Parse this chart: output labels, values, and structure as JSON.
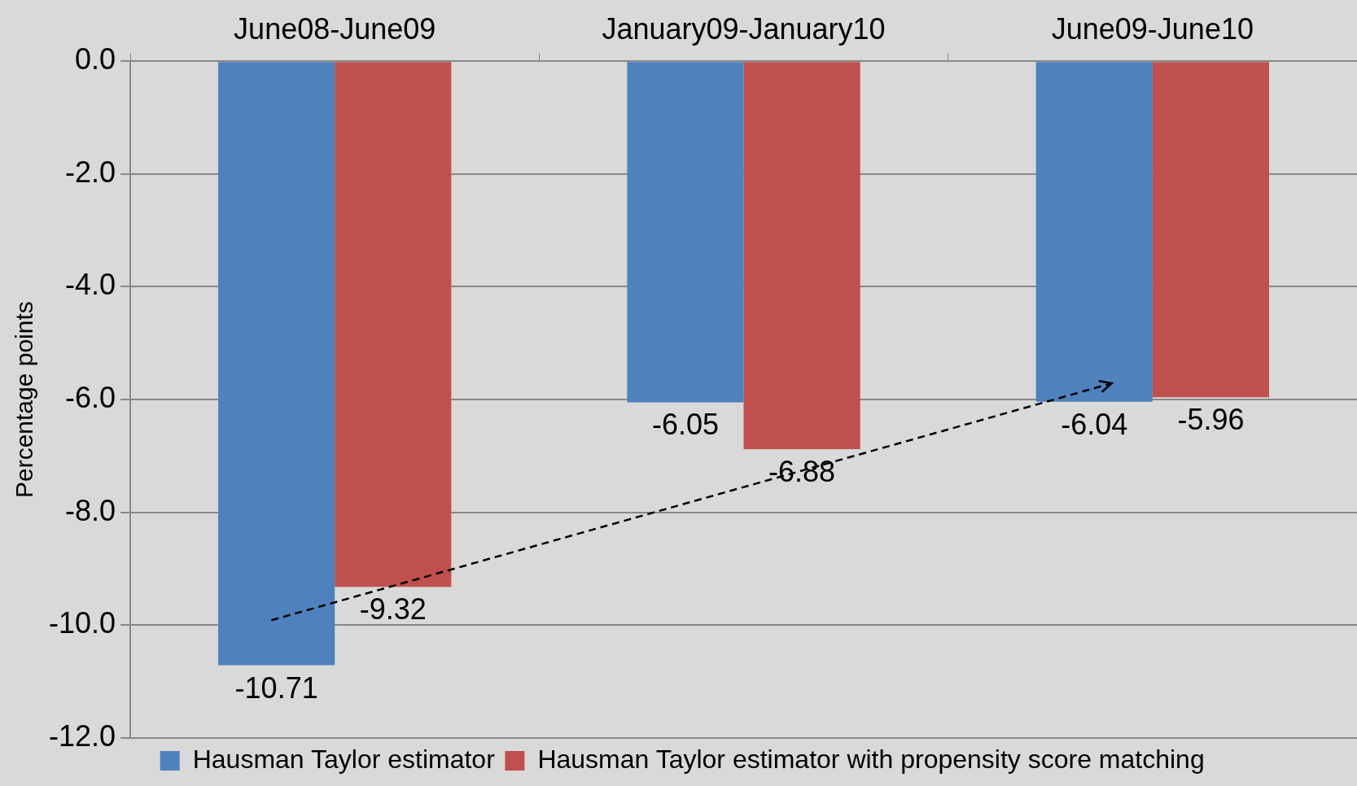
{
  "chart_data": {
    "type": "bar",
    "ylabel": "Percentage points",
    "categories": [
      "June08-June09",
      "January09-January10",
      "June09-June10"
    ],
    "series": [
      {
        "name": "Hausman Taylor estimator",
        "color": "#4f81bd",
        "values": [
          -10.71,
          -6.05,
          -6.04
        ]
      },
      {
        "name": "Hausman Taylor estimator with propensity score matching",
        "color": "#c0504d",
        "values": [
          -9.32,
          -6.88,
          -5.96
        ]
      }
    ],
    "ylim": [
      -12,
      0
    ],
    "yticks": [
      {
        "value": 0,
        "label": "0.0"
      },
      {
        "value": -2,
        "label": "-2.0"
      },
      {
        "value": -4,
        "label": "-4.0"
      },
      {
        "value": -6,
        "label": "-6.0"
      },
      {
        "value": -8,
        "label": "-8.0"
      },
      {
        "value": -10,
        "label": "-10.0"
      },
      {
        "value": -12,
        "label": "-12.0"
      }
    ],
    "grid": "y",
    "legend": "bottom",
    "data_labels": true
  }
}
